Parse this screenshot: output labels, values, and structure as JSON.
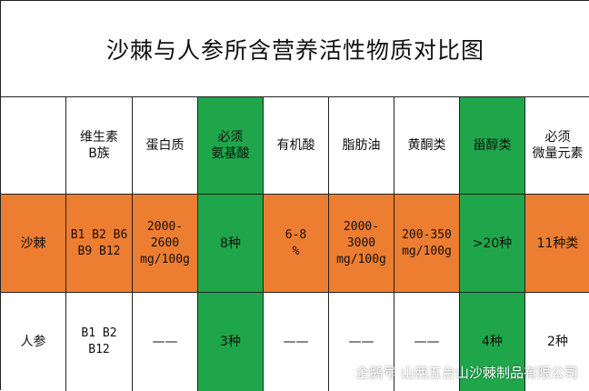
{
  "title": "沙棘与人参所含营养活性物质对比图",
  "headers": [
    "",
    "维生素\nB族",
    "蛋白质",
    "必须\n氨基酸",
    "有机酸",
    "脂肪油",
    "黄酮类",
    "甾醇类",
    "必须\n微量元素"
  ],
  "rows": [
    {
      "name": "沙棘",
      "cells": [
        "B1 B2 B6\nB9 B12",
        "2000-\n2600\nmg/100g",
        "8种",
        "6-8\n%",
        "2000-\n3000\nmg/100g",
        "200-350\nmg/100g",
        ">20种",
        "11种类"
      ]
    },
    {
      "name": "人参",
      "cells": [
        "B1 B2\nB12",
        "——",
        "3种",
        "——",
        "——",
        "——",
        "4种",
        "2种"
      ]
    }
  ],
  "colors": {
    "highlight_row": "#ed7d31",
    "highlight_column": "#1fa64a"
  },
  "watermark": {
    "icon": "penguin-icon",
    "text": "企鹅号 山西五台山沙棘制品有限公司"
  }
}
